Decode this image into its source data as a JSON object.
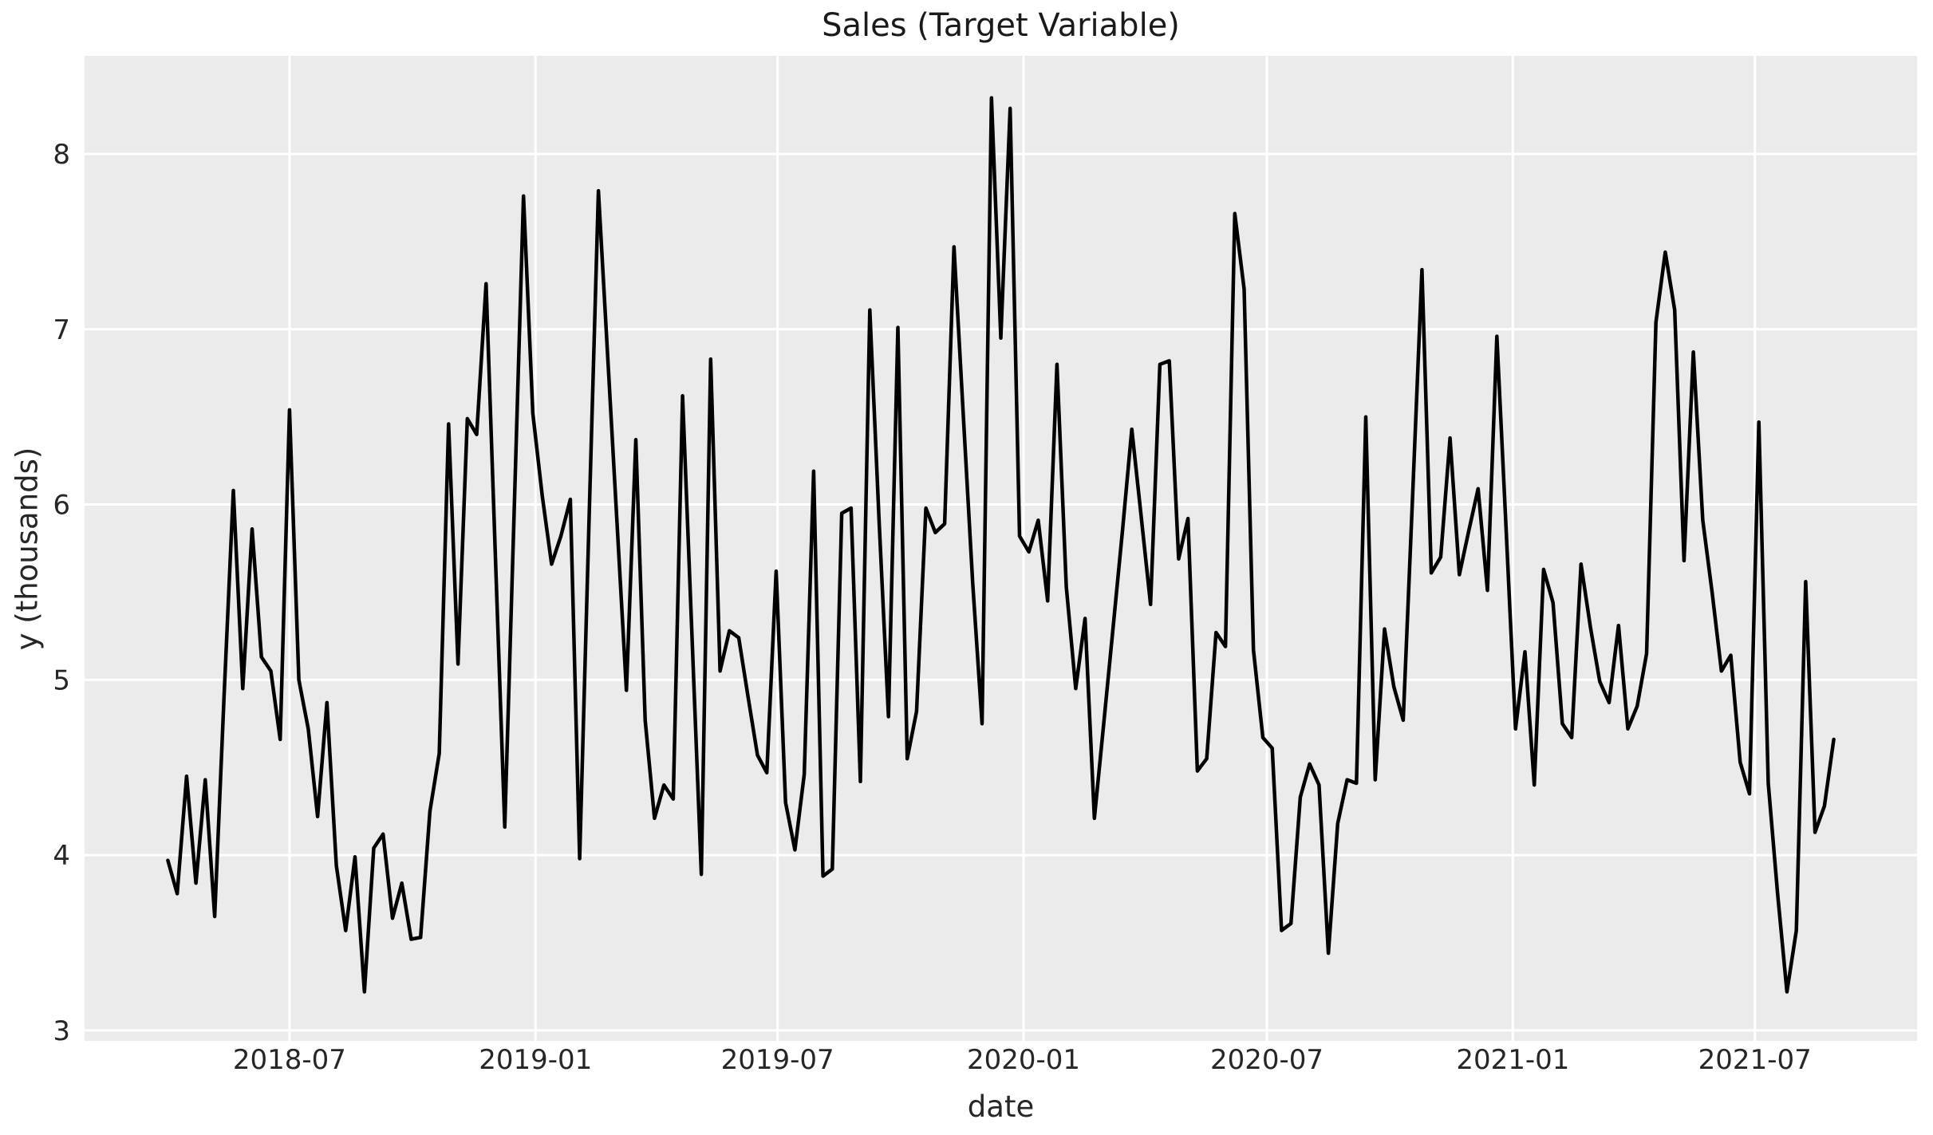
{
  "title": "Sales (Target Variable)",
  "chart_data": {
    "type": "line",
    "title": "Sales (Target Variable)",
    "xlabel": "date",
    "ylabel": "y (thousands)",
    "legend_position": "none",
    "grid": true,
    "series_name": "y",
    "x_start_date": "2018-04-01",
    "x_freq_days": 7,
    "values": [
      3.97,
      3.78,
      4.45,
      3.84,
      4.43,
      3.65,
      4.9,
      6.08,
      4.95,
      5.86,
      5.13,
      5.05,
      4.66,
      6.54,
      5.0,
      4.72,
      4.22,
      4.87,
      3.94,
      3.57,
      3.99,
      3.22,
      4.04,
      4.12,
      3.64,
      3.84,
      3.52,
      3.53,
      4.25,
      4.58,
      6.46,
      5.09,
      6.49,
      6.4,
      7.26,
      5.7,
      4.16,
      5.96,
      7.76,
      6.52,
      6.05,
      5.66,
      5.82,
      6.03,
      3.98,
      5.9,
      7.79,
      6.84,
      5.89,
      4.94,
      6.37,
      4.77,
      4.21,
      4.4,
      4.32,
      6.62,
      5.25,
      3.89,
      6.83,
      5.05,
      5.28,
      5.24,
      4.9,
      4.57,
      4.47,
      5.62,
      4.3,
      4.03,
      4.46,
      6.19,
      3.88,
      3.92,
      5.95,
      5.98,
      4.42,
      7.11,
      5.9,
      4.79,
      7.01,
      4.55,
      4.82,
      5.98,
      5.84,
      5.89,
      7.47,
      6.5,
      5.55,
      4.75,
      8.32,
      6.95,
      8.26,
      5.82,
      5.73,
      5.91,
      5.45,
      6.8,
      5.53,
      4.95,
      5.35,
      4.21,
      4.75,
      5.3,
      5.85,
      6.43,
      5.93,
      5.43,
      6.8,
      6.82,
      5.69,
      5.92,
      4.48,
      4.55,
      5.27,
      5.19,
      7.66,
      7.23,
      5.17,
      4.67,
      4.61,
      3.57,
      3.61,
      4.33,
      4.52,
      4.4,
      3.44,
      4.18,
      4.43,
      4.41,
      6.5,
      4.43,
      5.29,
      4.96,
      4.77,
      6.05,
      7.34,
      5.61,
      5.7,
      6.38,
      5.6,
      5.85,
      6.09,
      5.51,
      6.96,
      5.85,
      4.72,
      5.16,
      4.4,
      5.63,
      5.44,
      4.75,
      4.67,
      5.66,
      5.3,
      4.99,
      4.87,
      5.31,
      4.72,
      4.85,
      5.15,
      7.04,
      7.44,
      7.11,
      5.68,
      6.87,
      5.91,
      5.5,
      5.05,
      5.14,
      4.53,
      4.35,
      6.47,
      4.41,
      3.78,
      3.22,
      3.57,
      5.56,
      4.13,
      4.28,
      4.66
    ],
    "x_tick_dates": [
      "2018-07-01",
      "2019-01-01",
      "2019-07-01",
      "2020-01-01",
      "2020-07-01",
      "2021-01-01",
      "2021-07-01"
    ],
    "x_tick_labels": [
      "2018-07",
      "2019-01",
      "2019-07",
      "2020-01",
      "2020-07",
      "2021-01",
      "2021-07"
    ],
    "y_ticks": [
      3,
      4,
      5,
      6,
      7,
      8
    ],
    "ylim": [
      2.94,
      8.56
    ],
    "x_margin_frac": 0.05,
    "colors": {
      "figure_bg": "#ffffff",
      "axes_bg": "#ebebeb",
      "grid": "#ffffff",
      "line": "#000000",
      "tick_text": "#262626",
      "title_text": "#1a1a1a"
    }
  }
}
